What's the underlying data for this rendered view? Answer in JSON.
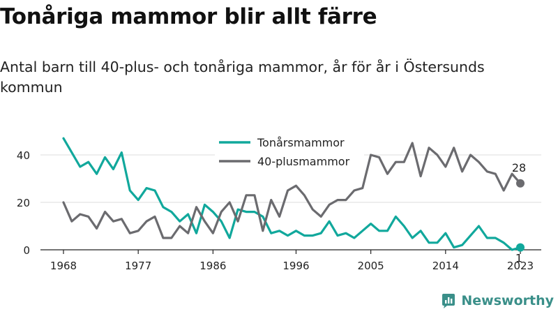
{
  "title": "Tonåriga mammor blir allt färre",
  "subtitle": "Antal barn till 40-plus- och tonåriga mammor, år för år i Östersunds kommun",
  "brand": "Newsworthy",
  "colors": {
    "teen": "#11a89c",
    "forty": "#6b6b6f",
    "axis": "#222222",
    "grid": "#dddddd",
    "brand": "#3a8f89"
  },
  "chart_data": {
    "type": "line",
    "x": [
      1968,
      1969,
      1970,
      1971,
      1972,
      1973,
      1974,
      1975,
      1976,
      1977,
      1978,
      1979,
      1980,
      1981,
      1982,
      1983,
      1984,
      1985,
      1986,
      1987,
      1988,
      1989,
      1990,
      1991,
      1992,
      1993,
      1994,
      1995,
      1996,
      1997,
      1998,
      1999,
      2000,
      2001,
      2002,
      2003,
      2004,
      2005,
      2006,
      2007,
      2008,
      2009,
      2010,
      2011,
      2012,
      2013,
      2014,
      2015,
      2016,
      2017,
      2018,
      2019,
      2020,
      2021,
      2022,
      2023
    ],
    "series": [
      {
        "name": "Tonårsmammor",
        "color": "#11a89c",
        "values": [
          47,
          41,
          35,
          37,
          32,
          39,
          34,
          41,
          25,
          21,
          26,
          25,
          18,
          16,
          12,
          15,
          7,
          19,
          16,
          12,
          5,
          17,
          16,
          16,
          14,
          7,
          8,
          6,
          8,
          6,
          6,
          7,
          12,
          6,
          7,
          5,
          8,
          11,
          8,
          8,
          14,
          10,
          5,
          8,
          3,
          3,
          7,
          1,
          2,
          6,
          10,
          5,
          5,
          3,
          0,
          1
        ]
      },
      {
        "name": "40-plusmammor",
        "color": "#6b6b6f",
        "values": [
          20,
          12,
          15,
          14,
          9,
          16,
          12,
          13,
          7,
          8,
          12,
          14,
          5,
          5,
          10,
          7,
          18,
          12,
          7,
          16,
          20,
          12,
          23,
          23,
          8,
          21,
          14,
          25,
          27,
          23,
          17,
          14,
          19,
          21,
          21,
          25,
          26,
          40,
          39,
          32,
          37,
          37,
          45,
          31,
          43,
          40,
          35,
          43,
          33,
          40,
          37,
          33,
          32,
          25,
          32,
          28
        ]
      }
    ],
    "end_labels": [
      {
        "series": "40-plusmammor",
        "text": "28"
      },
      {
        "series": "Tonårsmammor",
        "text": "1"
      }
    ],
    "x_ticks": [
      "1968",
      "1977",
      "1986",
      "1996",
      "2005",
      "2014",
      "2023"
    ],
    "y_ticks": [
      "0",
      "20",
      "40"
    ],
    "ylim": [
      0,
      50
    ],
    "xlim": [
      1968,
      2023
    ],
    "legend_position": "top-center",
    "grid": true
  }
}
